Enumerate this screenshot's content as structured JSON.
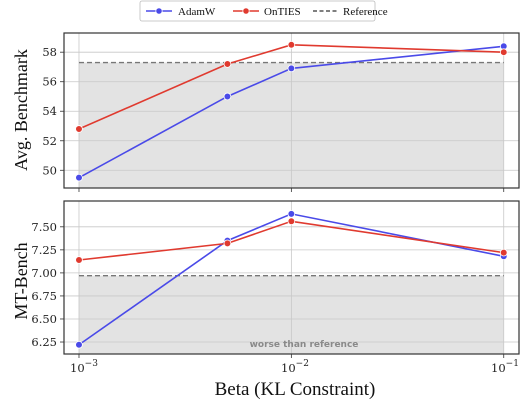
{
  "chart_data": [
    {
      "type": "line",
      "x": [
        0.001,
        0.005,
        0.01,
        0.1
      ],
      "xscale": "log",
      "xlim": [
        0.00085,
        0.118
      ],
      "ylim": [
        48.8,
        59.3
      ],
      "yticks": [
        50,
        52,
        54,
        56,
        58
      ],
      "ylabel": "Avg. Benchmark",
      "xlabel": "",
      "grid": true,
      "series": [
        {
          "name": "AdamW",
          "color": "#4a4ae8",
          "values": [
            49.5,
            55.0,
            56.9,
            58.4
          ]
        },
        {
          "name": "OnTIES",
          "color": "#e03a2f",
          "values": [
            52.8,
            57.2,
            58.5,
            58.0
          ]
        }
      ],
      "reference": {
        "name": "Reference",
        "value": 57.3,
        "color": "#777777"
      }
    },
    {
      "type": "line",
      "x": [
        0.001,
        0.005,
        0.01,
        0.1
      ],
      "xscale": "log",
      "xlim": [
        0.00085,
        0.118
      ],
      "ylim": [
        6.12,
        7.78
      ],
      "yticks": [
        6.25,
        6.5,
        6.75,
        7.0,
        7.25,
        7.5
      ],
      "ytick_labels": [
        "6.25",
        "6.50",
        "6.75",
        "7.00",
        "7.25",
        "7.50"
      ],
      "ylabel": "MT-Bench",
      "xlabel": "Beta (KL Constraint)",
      "grid": true,
      "series": [
        {
          "name": "AdamW",
          "color": "#4a4ae8",
          "values": [
            6.22,
            7.35,
            7.64,
            7.18
          ]
        },
        {
          "name": "OnTIES",
          "color": "#e03a2f",
          "values": [
            7.14,
            7.32,
            7.56,
            7.22
          ]
        }
      ],
      "reference": {
        "name": "Reference",
        "value": 6.97,
        "color": "#777777"
      },
      "annotation": "worse than reference"
    }
  ],
  "legend": {
    "position": "top-center",
    "items": [
      {
        "label": "AdamW",
        "color": "#4a4ae8",
        "style": "line-marker"
      },
      {
        "label": "OnTIES",
        "color": "#e03a2f",
        "style": "line-marker"
      },
      {
        "label": "Reference",
        "color": "#555555",
        "style": "dashed"
      }
    ]
  },
  "x_ticks": [
    {
      "base": "10",
      "exp": "−3"
    },
    {
      "base": "10",
      "exp": "−2"
    },
    {
      "base": "10",
      "exp": "−1"
    }
  ],
  "colors": {
    "shade": "#e3e3e3",
    "grid": "#c8c8c8",
    "frame": "#333333"
  }
}
